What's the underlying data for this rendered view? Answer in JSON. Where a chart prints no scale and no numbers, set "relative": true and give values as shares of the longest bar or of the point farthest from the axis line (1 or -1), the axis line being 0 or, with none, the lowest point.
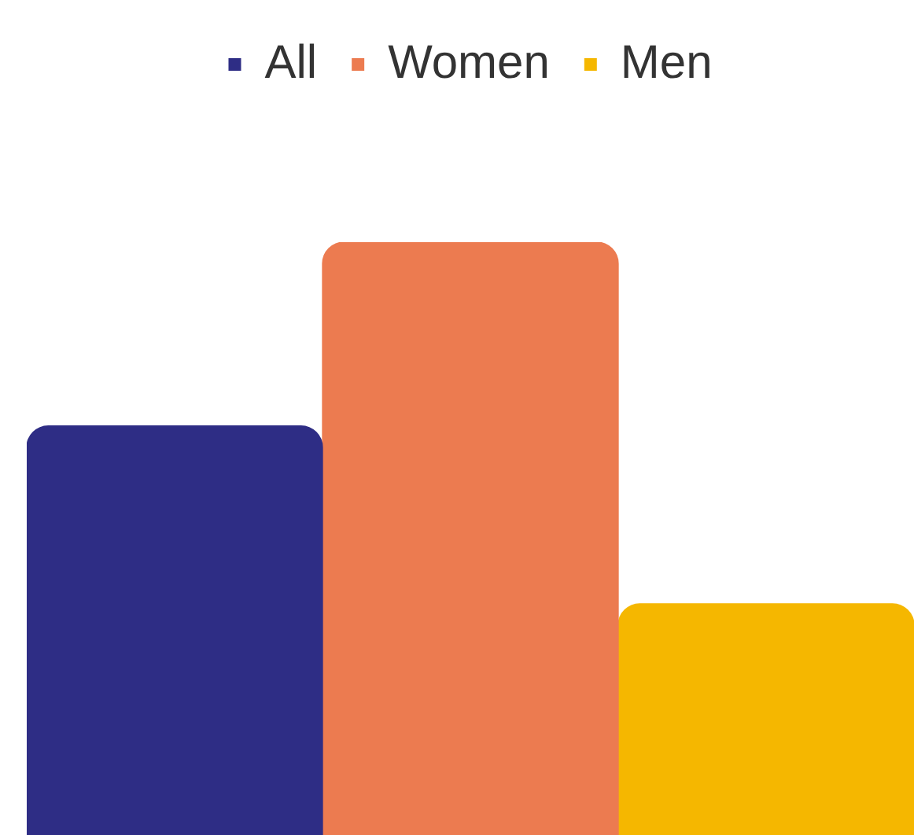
{
  "chart_data": {
    "type": "bar",
    "relative": true,
    "legend": "top",
    "categories": [
      null
    ],
    "series": [
      {
        "name": "All",
        "color": "#2e2d85",
        "values": [
          0.69
        ]
      },
      {
        "name": "Women",
        "color": "#ec7b50",
        "values": [
          1
        ]
      },
      {
        "name": "Men",
        "color": "#f5b700",
        "values": [
          0.39
        ]
      }
    ]
  }
}
